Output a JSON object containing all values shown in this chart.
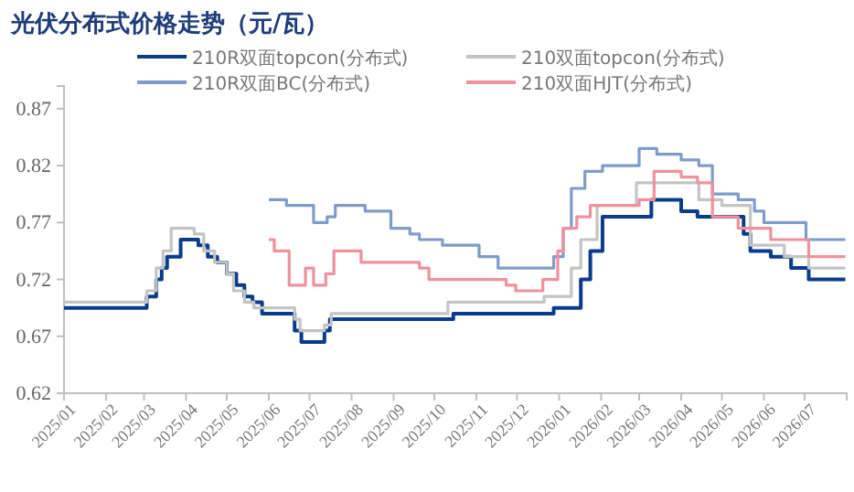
{
  "chart_data": {
    "type": "step",
    "title": "光伏分布式价格走势（元/瓦）",
    "legend": "top",
    "grid": false,
    "marker": "none",
    "line_style": "solid",
    "xlim": [
      "2025-01-01",
      "2026-08-01"
    ],
    "xticks": [
      {
        "value": "2025-01",
        "label": "2025/01"
      },
      {
        "value": "2025-02",
        "label": "2025/02"
      },
      {
        "value": "2025-03",
        "label": "2025/03"
      },
      {
        "value": "2025-04",
        "label": "2025/04"
      },
      {
        "value": "2025-05",
        "label": "2025/05"
      },
      {
        "value": "2025-06",
        "label": "2025/06"
      },
      {
        "value": "2025-07",
        "label": "2025/07"
      },
      {
        "value": "2025-08",
        "label": "2025/08"
      },
      {
        "value": "2025-09",
        "label": "2025/09"
      },
      {
        "value": "2025-10",
        "label": "2025/10"
      },
      {
        "value": "2025-11",
        "label": "2025/11"
      },
      {
        "value": "2025-12",
        "label": "2025/12"
      },
      {
        "value": "2026-01",
        "label": "2026/01"
      },
      {
        "value": "2026-02",
        "label": "2026/02"
      },
      {
        "value": "2026-03",
        "label": "2026/03"
      },
      {
        "value": "2026-04",
        "label": "2026/04"
      },
      {
        "value": "2026-05",
        "label": "2026/05"
      },
      {
        "value": "2026-06",
        "label": "2026/06"
      },
      {
        "value": "2026-07",
        "label": "2026/07"
      }
    ],
    "ylim": [
      0.62,
      0.89
    ],
    "yticks": [
      0.62,
      0.67,
      0.72,
      0.77,
      0.82,
      0.87
    ],
    "series": [
      {
        "name": "210R双面topcon(分布式)",
        "color": "#0b3c8c",
        "x": [
          "2025-01-01",
          "2025-03-03",
          "2025-03-10",
          "2025-03-14",
          "2025-03-18",
          "2025-03-28",
          "2025-04-10",
          "2025-04-17",
          "2025-04-24",
          "2025-05-01",
          "2025-05-08",
          "2025-05-14",
          "2025-05-20",
          "2025-05-27",
          "2025-06-20",
          "2025-06-25",
          "2025-07-12",
          "2025-07-16",
          "2025-10-15",
          "2025-12-28",
          "2026-01-17",
          "2026-01-24",
          "2026-02-02",
          "2026-03-10",
          "2026-04-01",
          "2026-04-13",
          "2026-05-17",
          "2026-05-22",
          "2026-06-06",
          "2026-06-21",
          "2026-07-04",
          "2026-07-31"
        ],
        "values": [
          0.695,
          0.705,
          0.72,
          0.73,
          0.74,
          0.755,
          0.75,
          0.74,
          0.735,
          0.725,
          0.715,
          0.705,
          0.7,
          0.69,
          0.675,
          0.665,
          0.675,
          0.685,
          0.69,
          0.695,
          0.72,
          0.745,
          0.775,
          0.79,
          0.78,
          0.775,
          0.76,
          0.745,
          0.74,
          0.73,
          0.72,
          0.72
        ]
      },
      {
        "name": "210双面topcon(分布式)",
        "color": "#c4c4c4",
        "x": [
          "2025-01-01",
          "2025-03-03",
          "2025-03-10",
          "2025-03-15",
          "2025-03-21",
          "2025-04-07",
          "2025-04-14",
          "2025-04-22",
          "2025-05-01",
          "2025-05-06",
          "2025-05-14",
          "2025-05-21",
          "2025-06-20",
          "2025-06-24",
          "2025-07-12",
          "2025-07-17",
          "2025-10-11",
          "2025-12-21",
          "2026-01-10",
          "2026-01-17",
          "2026-01-29",
          "2026-02-27",
          "2026-04-14",
          "2026-05-01",
          "2026-05-22",
          "2026-06-16",
          "2026-07-04",
          "2026-07-31"
        ],
        "values": [
          0.7,
          0.71,
          0.73,
          0.745,
          0.765,
          0.76,
          0.745,
          0.735,
          0.725,
          0.71,
          0.7,
          0.695,
          0.685,
          0.675,
          0.68,
          0.69,
          0.7,
          0.705,
          0.73,
          0.755,
          0.785,
          0.805,
          0.79,
          0.785,
          0.75,
          0.74,
          0.73,
          0.73
        ]
      },
      {
        "name": "210R双面BC(分布式)",
        "color": "#7f9cc9",
        "x": [
          "2025-06-01",
          "2025-06-14",
          "2025-07-04",
          "2025-07-14",
          "2025-07-20",
          "2025-08-11",
          "2025-08-30",
          "2025-09-13",
          "2025-09-20",
          "2025-10-07",
          "2025-11-03",
          "2025-11-17",
          "2025-12-01",
          "2025-12-14",
          "2025-12-28",
          "2026-01-04",
          "2026-01-10",
          "2026-01-20",
          "2026-02-02",
          "2026-03-01",
          "2026-03-14",
          "2026-04-01",
          "2026-04-14",
          "2026-04-24",
          "2026-05-13",
          "2026-05-25",
          "2026-06-01",
          "2026-07-02",
          "2026-07-31"
        ],
        "values": [
          0.79,
          0.785,
          0.77,
          0.775,
          0.785,
          0.78,
          0.765,
          0.76,
          0.755,
          0.75,
          0.74,
          0.73,
          0.73,
          0.73,
          0.74,
          0.765,
          0.8,
          0.815,
          0.82,
          0.835,
          0.83,
          0.825,
          0.82,
          0.795,
          0.79,
          0.78,
          0.77,
          0.755,
          0.755
        ]
      },
      {
        "name": "210双面HJT(分布式)",
        "color": "#f0919c",
        "x": [
          "2025-06-01",
          "2025-06-05",
          "2025-06-16",
          "2025-06-28",
          "2025-07-04",
          "2025-07-13",
          "2025-07-19",
          "2025-08-08",
          "2025-09-20",
          "2025-09-27",
          "2025-11-23",
          "2025-11-30",
          "2025-12-20",
          "2025-12-31",
          "2026-01-04",
          "2026-01-14",
          "2026-01-24",
          "2026-03-01",
          "2026-03-12",
          "2026-04-01",
          "2026-04-13",
          "2026-04-24",
          "2026-05-13",
          "2026-06-06",
          "2026-07-04",
          "2026-07-31"
        ],
        "values": [
          0.755,
          0.745,
          0.715,
          0.73,
          0.715,
          0.725,
          0.745,
          0.735,
          0.73,
          0.72,
          0.715,
          0.71,
          0.72,
          0.745,
          0.765,
          0.775,
          0.785,
          0.79,
          0.815,
          0.81,
          0.805,
          0.775,
          0.765,
          0.755,
          0.74,
          0.74
        ]
      }
    ]
  }
}
